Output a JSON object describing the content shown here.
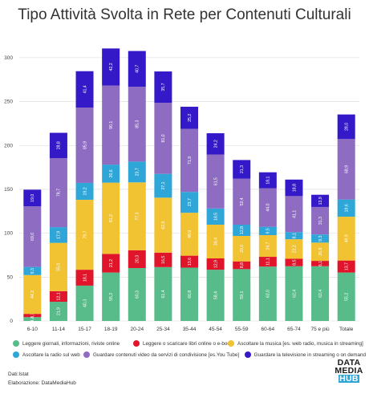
{
  "title": "Tipo Attività Svolta in Rete per Contenuti Culturali",
  "colors": {
    "green": "#57bb8a",
    "red": "#e0152b",
    "yellow": "#f1c232",
    "teal": "#2ea6d8",
    "purple": "#8e6cc1",
    "blue": "#3419c9"
  },
  "chart_data": {
    "type": "bar",
    "stacked": true,
    "categories": [
      "6-10",
      "11-14",
      "15-17",
      "18-19",
      "20-24",
      "25-34",
      "35-44",
      "45-54",
      "55-59",
      "60-64",
      "65-74",
      "75 e più",
      "Totale"
    ],
    "ylim": [
      0,
      320
    ],
    "yticks": [
      0,
      50,
      100,
      150,
      200,
      250,
      300
    ],
    "grid": true,
    "legend_position": "bottom",
    "series": [
      {
        "name": "Leggere giornali, informazioni, riviste online",
        "color": "#57bb8a",
        "values": [
          4.4,
          21.9,
          40.3,
          55.2,
          60.3,
          61.4,
          60.8,
          58.4,
          59.1,
          62.0,
          62.4,
          62.4,
          55.2
        ]
      },
      {
        "name": "Leggere o scaricare libri online o e-book",
        "color": "#e0152b",
        "values": [
          3.7,
          12.1,
          18.1,
          21.2,
          20.3,
          16.5,
          13.6,
          12.9,
          8.8,
          11.1,
          8.5,
          6.1,
          13.7
        ]
      },
      {
        "name": "Ascoltare la musica [es. web radio, musica in streaming]",
        "color": "#f1c232",
        "values": [
          44.2,
          55.0,
          79.7,
          81.2,
          77.3,
          62.6,
          48.9,
          38.4,
          29.0,
          24.7,
          22.2,
          20.8,
          49.9
        ]
      },
      {
        "name": "Ascoltare la radio sul web",
        "color": "#2ea6d8",
        "values": [
          9.3,
          17.9,
          19.2,
          20.6,
          23.7,
          27.1,
          23.7,
          18.5,
          12.8,
          9.5,
          8.1,
          9.3,
          19.6
        ]
      },
      {
        "name": "Guardare contenuti video da servizi di condivisione [es.You Tube]",
        "color": "#8e6cc1",
        "values": [
          69.0,
          78.7,
          85.9,
          90.1,
          85.3,
          81.0,
          71.9,
          61.5,
          52.4,
          44.0,
          41.1,
          31.3,
          68.9
        ]
      },
      {
        "name": "Guardare la televisione in streaming o on demand",
        "color": "#3419c9",
        "values": [
          19.0,
          28.8,
          41.4,
          42.2,
          40.7,
          35.7,
          25.2,
          24.2,
          21.3,
          18.1,
          18.8,
          13.9,
          28.0
        ]
      }
    ],
    "data_labels": [
      [
        "4,4",
        "3,7",
        "44,2",
        "9,3",
        "69,0",
        "19,0"
      ],
      [
        "21,9",
        "12,1",
        "55,0",
        "17,9",
        "78,7",
        "28,8"
      ],
      [
        "40,3",
        "18,1",
        "79,7",
        "19,2",
        "85,9",
        "41,4"
      ],
      [
        "55,2",
        "21,2",
        "81,2",
        "20,6",
        "90,1",
        "42,2"
      ],
      [
        "60,3",
        "20,3",
        "77,3",
        "23,7",
        "85,3",
        "40,7"
      ],
      [
        "61,4",
        "16,5",
        "62,6",
        "27,1",
        "81,0",
        "35,7"
      ],
      [
        "60,8",
        "13,6",
        "48,9",
        "23,7",
        "71,9",
        "25,2"
      ],
      [
        "58,4",
        "12,9",
        "38,4",
        "18,5",
        "61,5",
        "24,2"
      ],
      [
        "59,1",
        "8,8",
        "29,0",
        "12,8",
        "52,4",
        "21,3"
      ],
      [
        "62,0",
        "11,1",
        "24,7",
        "9,5",
        "44,0",
        "18,1"
      ],
      [
        "62,4",
        "8,5",
        "22,2",
        "8,1",
        "41,1",
        "18,8"
      ],
      [
        "62,4",
        "6,1",
        "20,8",
        "9,3",
        "31,3",
        "13,9"
      ],
      [
        "55,2",
        "13,7",
        "49,9",
        "19,6",
        "68,9",
        "28,0"
      ]
    ]
  },
  "legend": {
    "items": [
      "Leggere giornali, informazioni, riviste online",
      "Leggere o scaricare libri online o e-book",
      "Ascoltare la musica [es. web radio, musica in streaming]",
      "Ascoltare la radio sul web",
      "Guardare contenuti video da servizi di condivisione [es.You Tube]",
      "Guardare la televisione in streaming o on demand"
    ]
  },
  "source": {
    "line1": "Dati:Istat",
    "line2": "Elaborazione: DataMediaHub"
  },
  "logo": {
    "word1": "DATA",
    "word2": "MEDIA",
    "word3": "HUB"
  }
}
